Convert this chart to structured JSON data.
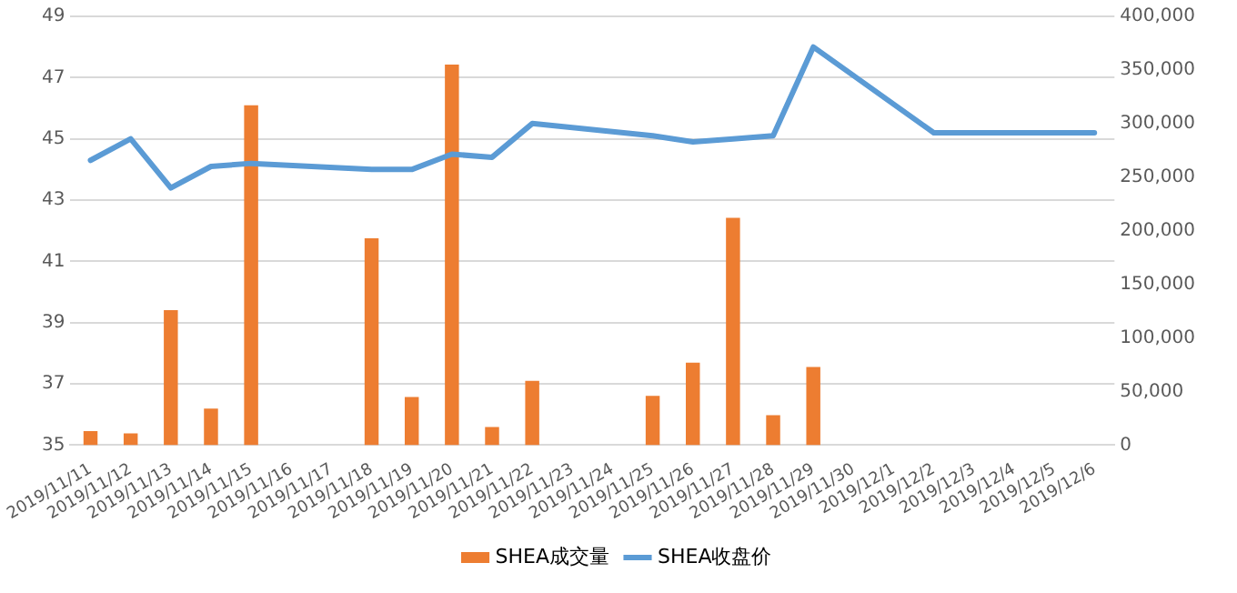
{
  "chart_data": {
    "type": "bar",
    "categories": [
      "2019/11/11",
      "2019/11/12",
      "2019/11/13",
      "2019/11/14",
      "2019/11/15",
      "2019/11/16",
      "2019/11/17",
      "2019/11/18",
      "2019/11/19",
      "2019/11/20",
      "2019/11/21",
      "2019/11/22",
      "2019/11/23",
      "2019/11/24",
      "2019/11/25",
      "2019/11/26",
      "2019/11/27",
      "2019/11/28",
      "2019/11/29",
      "2019/11/30",
      "2019/12/1",
      "2019/12/2",
      "2019/12/3",
      "2019/12/4",
      "2019/12/5",
      "2019/12/6"
    ],
    "series": [
      {
        "name": "SHEA成交量",
        "axis": "y2",
        "color": "#ed7d31",
        "values": [
          13000,
          11000,
          126000,
          34000,
          317000,
          null,
          null,
          193000,
          45000,
          355000,
          17000,
          60000,
          null,
          null,
          46000,
          77000,
          212000,
          28000,
          73000,
          null,
          null,
          null,
          null,
          null,
          null,
          null
        ]
      },
      {
        "name": "SHEA收盘价",
        "type": "line",
        "axis": "y",
        "color": "#5b9bd5",
        "values": [
          44.3,
          45.0,
          43.4,
          44.1,
          44.2,
          null,
          null,
          44.0,
          44.0,
          44.5,
          44.4,
          45.5,
          null,
          null,
          45.1,
          44.9,
          45.0,
          45.1,
          48.0,
          null,
          null,
          45.2,
          45.2,
          45.2,
          45.2,
          45.2
        ]
      }
    ],
    "ylim": [
      35,
      49
    ],
    "yticks": [
      35,
      37,
      39,
      41,
      43,
      45,
      47,
      49
    ],
    "y2lim": [
      0,
      400000
    ],
    "y2ticks": [
      0,
      {
        "value": 50000,
        "label": "50,000"
      },
      {
        "value": 100000,
        "label": "100,000"
      },
      {
        "value": 150000,
        "label": "150,000"
      },
      {
        "value": 200000,
        "label": "200,000"
      },
      {
        "value": 250000,
        "label": "250,000"
      },
      {
        "value": 300000,
        "label": "300,000"
      },
      {
        "value": 350000,
        "label": "350,000"
      },
      {
        "value": 400000,
        "label": "400,000"
      }
    ],
    "grid": "y",
    "legend": "bottom",
    "marker": "none",
    "line_style": "solid"
  }
}
